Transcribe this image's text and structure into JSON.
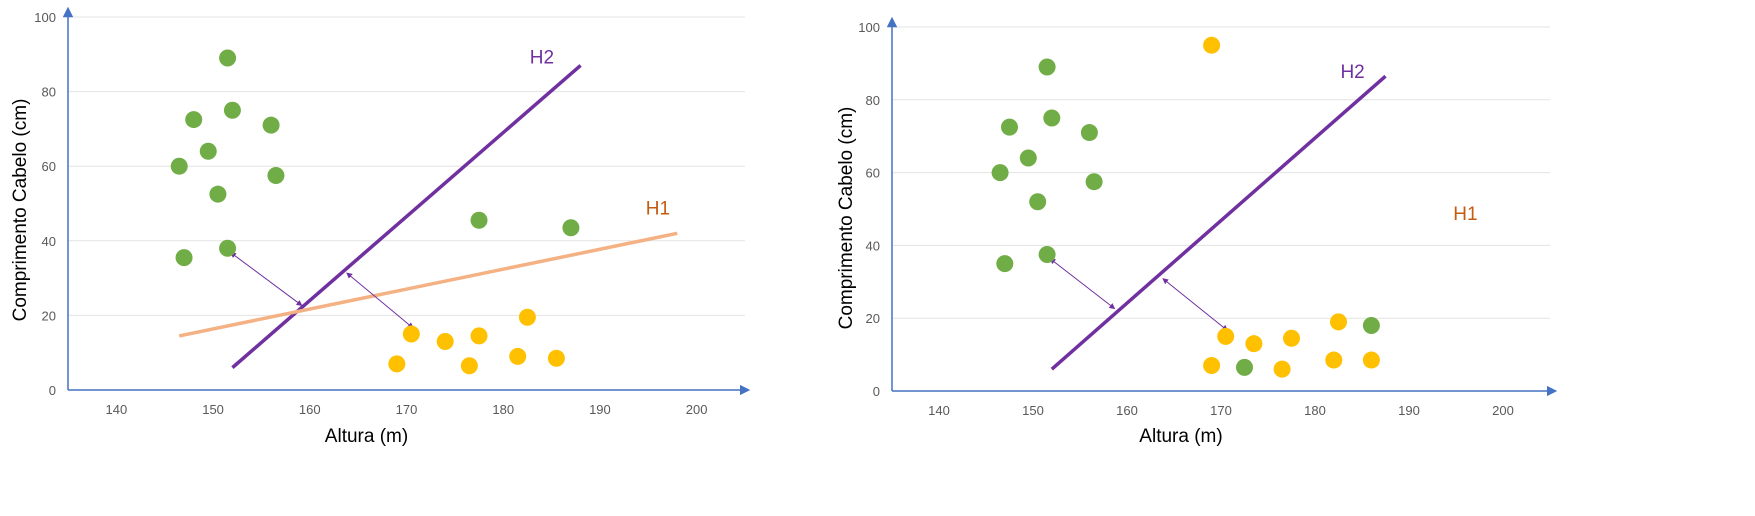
{
  "figure": {
    "colors": {
      "green": "#70ad47",
      "yellow": "#ffc000",
      "h2": "#7030a0",
      "h1_line": "#f4b183",
      "h1_label": "#c55a11",
      "axis": "#4472c4",
      "grid": "#e3e3e3",
      "tick_text": "#595959"
    }
  },
  "chart_data": [
    {
      "type": "scatter",
      "title": "",
      "xlabel": "Altura (m)",
      "ylabel": "Comprimento Cabelo (cm)",
      "xlim": [
        135,
        205
      ],
      "ylim": [
        0,
        100
      ],
      "xticks": [
        140,
        150,
        160,
        170,
        180,
        190,
        200
      ],
      "yticks": [
        0,
        20,
        40,
        60,
        80,
        100
      ],
      "grid": true,
      "series": [
        {
          "color": "#70ad47",
          "points": [
            [
              151.5,
              89
            ],
            [
              148,
              72.5
            ],
            [
              152,
              75
            ],
            [
              156,
              71
            ],
            [
              149.5,
              64
            ],
            [
              146.5,
              60
            ],
            [
              156.5,
              57.5
            ],
            [
              150.5,
              52.5
            ],
            [
              151.5,
              38
            ],
            [
              147,
              35.5
            ],
            [
              177.5,
              45.5
            ],
            [
              187,
              43.5
            ]
          ]
        },
        {
          "color": "#ffc000",
          "points": [
            [
              170.5,
              15
            ],
            [
              174,
              13
            ],
            [
              177.5,
              14.5
            ],
            [
              182.5,
              19.5
            ],
            [
              169,
              7
            ],
            [
              176.5,
              6.5
            ],
            [
              181.5,
              9
            ],
            [
              185.5,
              8.5
            ]
          ]
        }
      ],
      "lines": [
        {
          "label": "H2",
          "color": "#7030a0",
          "points": [
            [
              152,
              6
            ],
            [
              188,
              87
            ]
          ]
        },
        {
          "label": "H1",
          "color": "#f4b183",
          "points": [
            [
              146.5,
              14.5
            ],
            [
              198,
              42
            ]
          ]
        }
      ],
      "arrows": [
        {
          "from": [
            152,
            36.5
          ],
          "to": [
            159,
            23
          ]
        },
        {
          "from": [
            164,
            31
          ],
          "to": [
            170.5,
            17
          ]
        }
      ],
      "line_labels": [
        {
          "text": "H2",
          "x": 184,
          "y": 87.5,
          "color": "#7030a0"
        },
        {
          "text": "H1",
          "x": 196,
          "y": 47,
          "color": "#c55a11"
        }
      ]
    },
    {
      "type": "scatter",
      "title": "",
      "xlabel": "Altura (m)",
      "ylabel": "Comprimento Cabelo (cm)",
      "xlim": [
        135,
        205
      ],
      "ylim": [
        0,
        100
      ],
      "xticks": [
        140,
        150,
        160,
        170,
        180,
        190,
        200
      ],
      "yticks": [
        0,
        20,
        40,
        60,
        80,
        100
      ],
      "grid": true,
      "series": [
        {
          "color": "#70ad47",
          "points": [
            [
              151.5,
              89
            ],
            [
              147.5,
              72.5
            ],
            [
              152,
              75
            ],
            [
              156,
              71
            ],
            [
              149.5,
              64
            ],
            [
              146.5,
              60
            ],
            [
              156.5,
              57.5
            ],
            [
              150.5,
              52
            ],
            [
              151.5,
              37.5
            ],
            [
              147,
              35
            ],
            [
              172.5,
              6.5
            ],
            [
              186,
              18
            ]
          ]
        },
        {
          "color": "#ffc000",
          "points": [
            [
              169,
              95
            ],
            [
              170.5,
              15
            ],
            [
              173.5,
              13
            ],
            [
              177.5,
              14.5
            ],
            [
              182.5,
              19
            ],
            [
              169,
              7
            ],
            [
              176.5,
              6
            ],
            [
              182,
              8.5
            ],
            [
              186,
              8.5
            ]
          ]
        }
      ],
      "lines": [
        {
          "label": "H2",
          "color": "#7030a0",
          "points": [
            [
              152,
              6
            ],
            [
              187.5,
              86.5
            ]
          ]
        }
      ],
      "arrows": [
        {
          "from": [
            152,
            36
          ],
          "to": [
            158.5,
            23
          ]
        },
        {
          "from": [
            164,
            30.5
          ],
          "to": [
            170.5,
            17
          ]
        }
      ],
      "line_labels": [
        {
          "text": "H2",
          "x": 184,
          "y": 86,
          "color": "#7030a0"
        },
        {
          "text": "H1",
          "x": 196,
          "y": 47,
          "color": "#c55a11"
        }
      ]
    }
  ]
}
